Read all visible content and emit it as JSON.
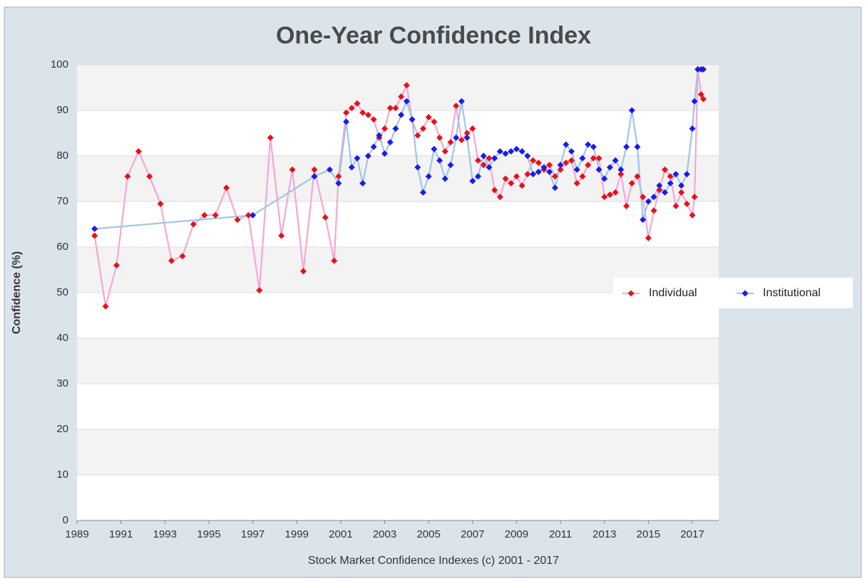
{
  "chart_data": {
    "type": "line",
    "title": "One-Year Confidence Index",
    "x_label": "Stock Market Confidence Indexes (c) 2001 - 2017",
    "y_label": "Confidence (%)",
    "xlim": [
      1989,
      2018.2
    ],
    "ylim": [
      0,
      100
    ],
    "xticks": [
      1989,
      1991,
      1993,
      1995,
      1997,
      1999,
      2001,
      2003,
      2005,
      2007,
      2009,
      2011,
      2013,
      2015,
      2017
    ],
    "yticks": [
      0,
      10,
      20,
      30,
      40,
      50,
      60,
      70,
      80,
      90,
      100
    ],
    "grid": true,
    "legend": "right",
    "series": [
      {
        "name": "Individual",
        "color": "#e8101a",
        "line_color": "#f4a8d4",
        "x": [
          1989.8,
          1990.3,
          1990.8,
          1991.3,
          1991.8,
          1992.3,
          1992.8,
          1993.3,
          1993.8,
          1994.3,
          1994.8,
          1995.3,
          1995.8,
          1996.3,
          1996.8,
          1997.3,
          1997.8,
          1998.3,
          1998.8,
          1999.3,
          1999.8,
          2000.3,
          2000.7,
          2000.9,
          2001.25,
          2001.5,
          2001.75,
          2002,
          2002.25,
          2002.5,
          2002.75,
          2003,
          2003.25,
          2003.5,
          2003.75,
          2004,
          2004.25,
          2004.5,
          2004.75,
          2005,
          2005.25,
          2005.5,
          2005.75,
          2006,
          2006.25,
          2006.5,
          2006.75,
          2007,
          2007.25,
          2007.5,
          2007.75,
          2008,
          2008.25,
          2008.5,
          2008.75,
          2009,
          2009.25,
          2009.5,
          2009.75,
          2010,
          2010.25,
          2010.5,
          2010.75,
          2011,
          2011.25,
          2011.5,
          2011.75,
          2012,
          2012.25,
          2012.5,
          2012.75,
          2013,
          2013.25,
          2013.5,
          2013.75,
          2014,
          2014.25,
          2014.5,
          2014.75,
          2015,
          2015.25,
          2015.5,
          2015.75,
          2016,
          2016.25,
          2016.5,
          2016.75,
          2017,
          2017.1,
          2017.25,
          2017.4,
          2017.5
        ],
        "values": [
          62.5,
          47,
          56,
          75.5,
          81,
          75.5,
          69.5,
          57,
          58,
          65,
          67,
          67,
          73,
          66,
          67,
          50.5,
          84,
          62.5,
          77,
          54.7,
          77,
          66.5,
          57,
          75.5,
          89.5,
          90.5,
          91.5,
          89.5,
          89,
          88,
          84,
          86,
          90.5,
          90.5,
          93,
          95.5,
          88,
          84.5,
          86,
          88.5,
          87.5,
          84,
          81,
          83,
          91,
          83.5,
          85,
          86,
          79,
          78,
          79.5,
          72.5,
          71,
          75,
          74,
          75.5,
          73.5,
          76,
          79,
          78.5,
          77,
          78,
          75.5,
          77,
          78.5,
          79,
          74,
          75.5,
          78,
          79.5,
          79.5,
          71,
          71.5,
          72,
          76,
          69,
          74,
          75.5,
          71,
          62,
          68,
          72.5,
          77,
          75.5,
          69,
          72,
          69.5,
          67,
          71,
          99,
          93.5,
          92.5
        ]
      },
      {
        "name": "Institutional",
        "color": "#1a1aee",
        "line_color": "#9fc5e8",
        "x": [
          1989.8,
          1997,
          1999.8,
          2000.5,
          2000.9,
          2001.25,
          2001.5,
          2001.75,
          2002,
          2002.25,
          2002.5,
          2002.75,
          2003,
          2003.25,
          2003.5,
          2003.75,
          2004,
          2004.25,
          2004.5,
          2004.75,
          2005,
          2005.25,
          2005.5,
          2005.75,
          2006,
          2006.25,
          2006.5,
          2006.75,
          2007,
          2007.25,
          2007.5,
          2007.75,
          2008,
          2008.25,
          2008.5,
          2008.75,
          2009,
          2009.25,
          2009.5,
          2009.75,
          2010,
          2010.25,
          2010.5,
          2010.75,
          2011,
          2011.25,
          2011.5,
          2011.75,
          2012,
          2012.25,
          2012.5,
          2012.75,
          2013,
          2013.25,
          2013.5,
          2013.75,
          2014,
          2014.25,
          2014.5,
          2014.75,
          2015,
          2015.25,
          2015.5,
          2015.75,
          2016,
          2016.25,
          2016.5,
          2016.75,
          2017,
          2017.1,
          2017.25,
          2017.4,
          2017.5
        ],
        "values": [
          64,
          67,
          75.5,
          77,
          74,
          87.5,
          77.5,
          79.5,
          74,
          80,
          82,
          84.5,
          80.5,
          83,
          86,
          89,
          92,
          88,
          77.5,
          72,
          75.5,
          81.5,
          79,
          75,
          78,
          84,
          92,
          84,
          74.5,
          75.5,
          80,
          77.5,
          79.5,
          81,
          80.5,
          81,
          81.5,
          81,
          80,
          76,
          76.5,
          77.5,
          76.5,
          73,
          78,
          82.5,
          81,
          77,
          79.5,
          82.5,
          82,
          77,
          75,
          77.5,
          79,
          77,
          82,
          90,
          82,
          66,
          70,
          71,
          73.5,
          72,
          74,
          76,
          73.5,
          76,
          86,
          92,
          99,
          99,
          99
        ]
      }
    ]
  }
}
